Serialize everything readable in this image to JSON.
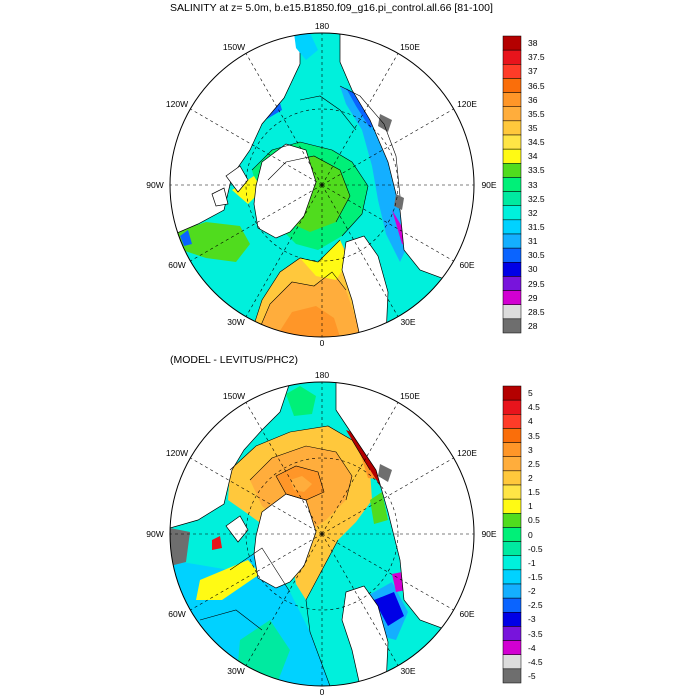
{
  "panels": [
    {
      "title": "SALINITY at z=   5.0m, b.e15.B1850.f09_g16.pi_control.all.66 [81-100]",
      "lon_labels": {
        "top": "180",
        "upper_left": "150W",
        "upper_right": "150E",
        "left_upper": "120W",
        "right_upper": "120E",
        "left": "90W",
        "right": "90E",
        "left_lower": "60W",
        "right_lower": "60E",
        "lower_left": "30W",
        "lower_right": "30E",
        "bottom": "0"
      },
      "colorbar": {
        "levels": [
          "38",
          "37.5",
          "37",
          "36.5",
          "36",
          "35.5",
          "35",
          "34.5",
          "34",
          "33.5",
          "33",
          "32.5",
          "32",
          "31.5",
          "31",
          "30.5",
          "30",
          "29.5",
          "29",
          "28.5",
          "28"
        ],
        "colors": [
          "#b40000",
          "#e8141c",
          "#ff3c28",
          "#fa6e0a",
          "#ff9628",
          "#ffad3c",
          "#ffc83c",
          "#ffe546",
          "#fffa14",
          "#50dc1e",
          "#00f078",
          "#00eaa0",
          "#00f0dc",
          "#00d2ff",
          "#14afff",
          "#0a64ff",
          "#0000e6",
          "#7814dc",
          "#d200d2",
          "#dcdcdc",
          "#6e6e6e"
        ]
      }
    },
    {
      "title": "(MODEL - LEVITUS/PHC2)",
      "lon_labels": {
        "top": "180",
        "upper_left": "150W",
        "upper_right": "150E",
        "left_upper": "120W",
        "right_upper": "120E",
        "left": "90W",
        "right": "90E",
        "left_lower": "60W",
        "right_lower": "60E",
        "lower_left": "30W",
        "lower_right": "30E",
        "bottom": "0"
      },
      "colorbar": {
        "levels": [
          "5",
          "4.5",
          "4",
          "3.5",
          "3",
          "2.5",
          "2",
          "1.5",
          "1",
          "0.5",
          "0",
          "-0.5",
          "-1",
          "-1.5",
          "-2",
          "-2.5",
          "-3",
          "-3.5",
          "-4",
          "-4.5",
          "-5"
        ],
        "colors": [
          "#b40000",
          "#e8141c",
          "#ff3c28",
          "#fa6e0a",
          "#ff9628",
          "#ffad3c",
          "#ffc83c",
          "#ffe546",
          "#fffa14",
          "#50dc1e",
          "#00f078",
          "#00eaa0",
          "#00f0dc",
          "#00d2ff",
          "#14afff",
          "#0a64ff",
          "#0000e6",
          "#7814dc",
          "#d200d2",
          "#dcdcdc",
          "#6e6e6e"
        ]
      }
    }
  ]
}
